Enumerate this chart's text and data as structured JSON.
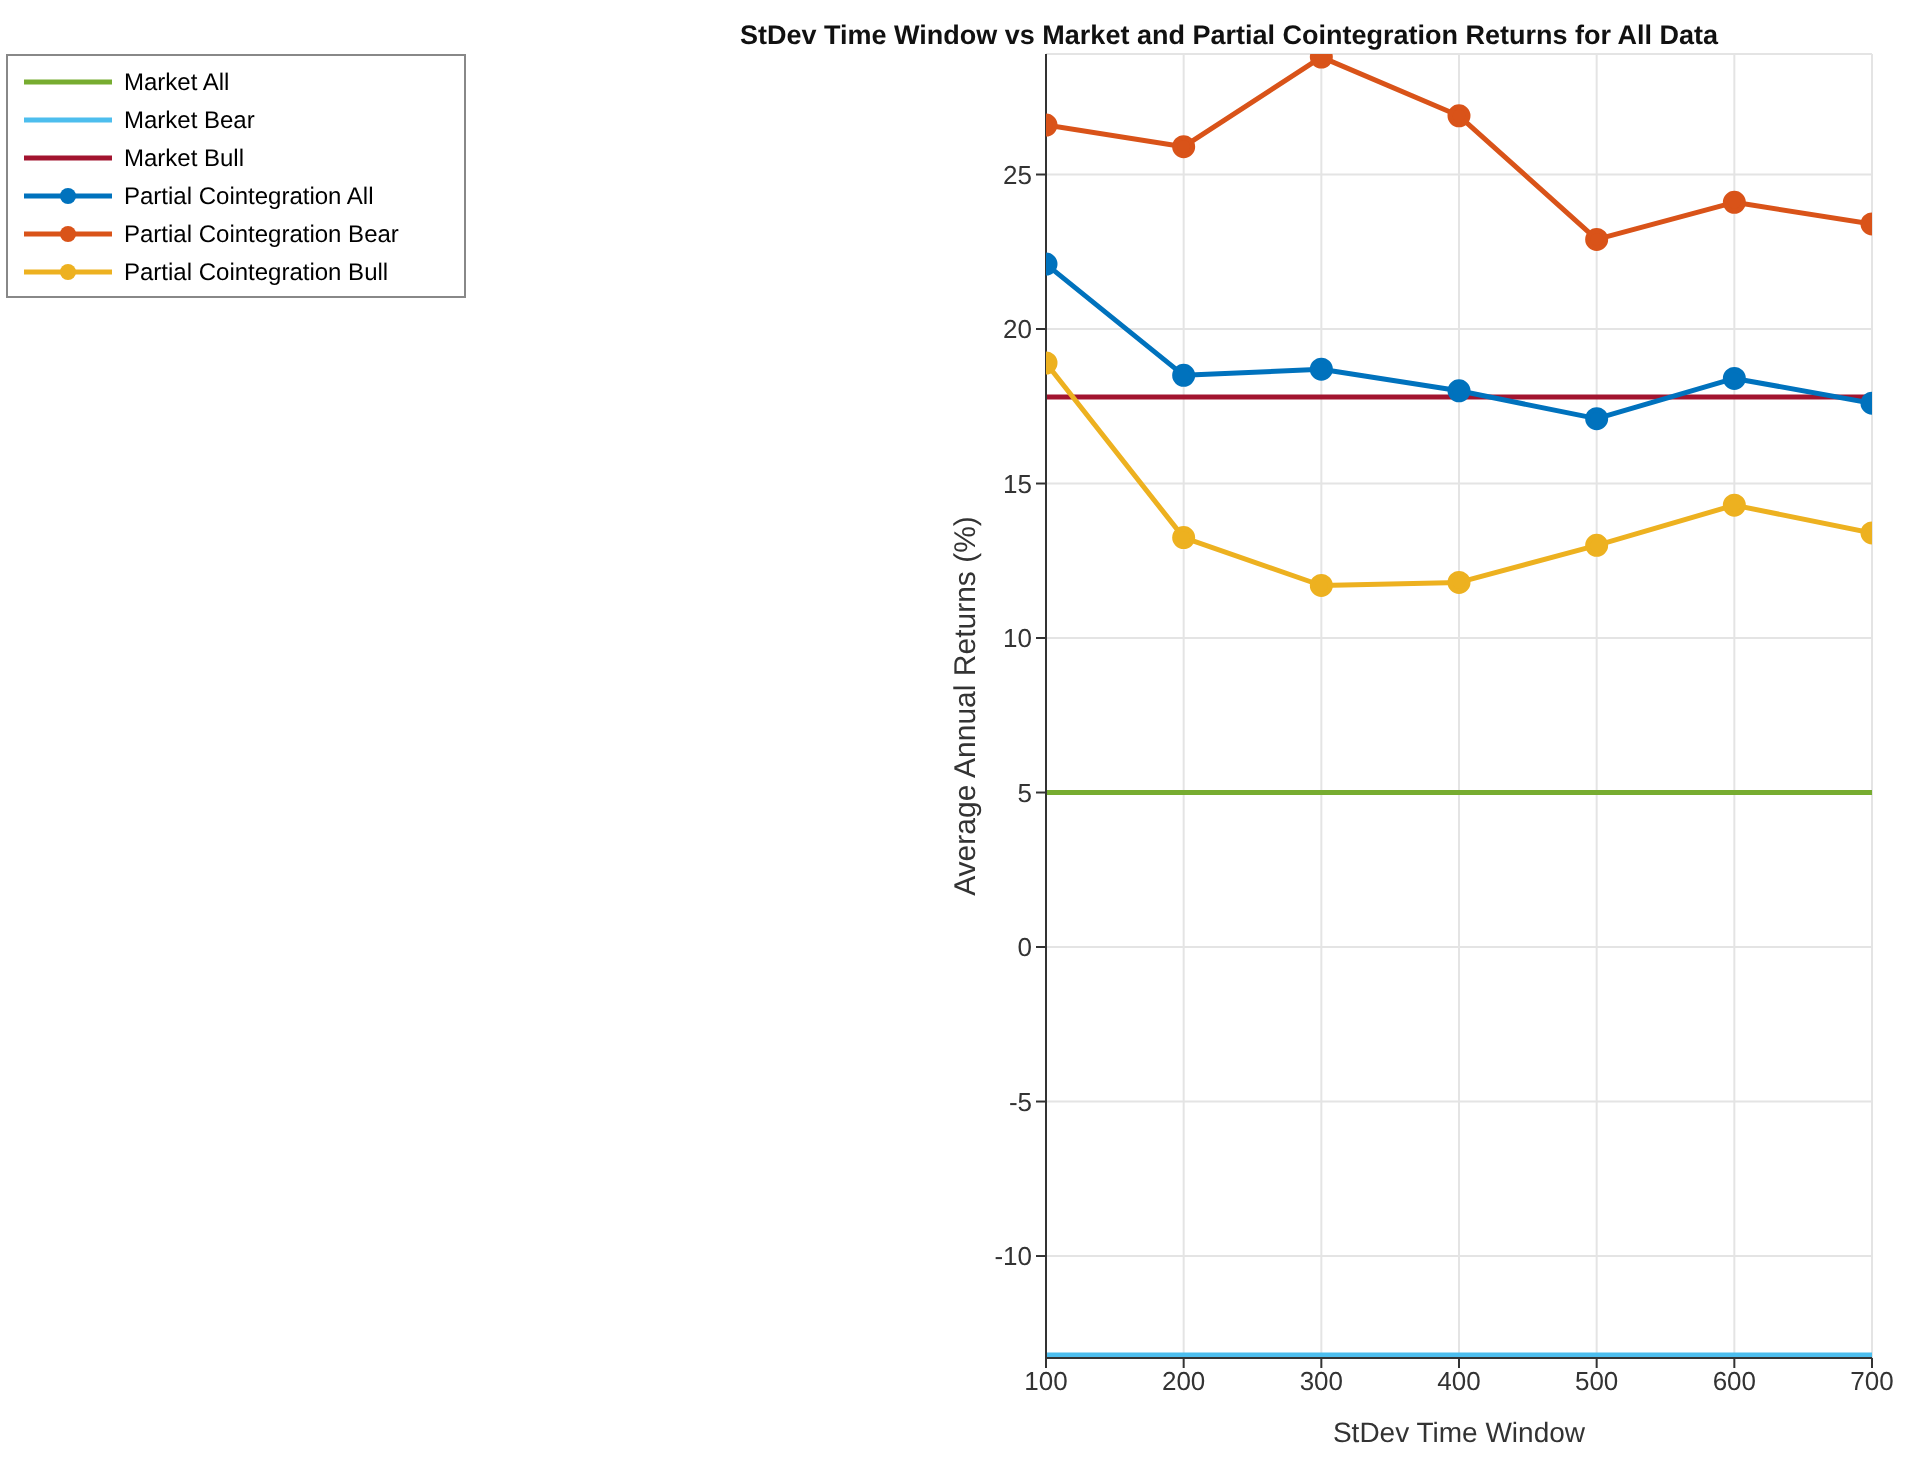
{
  "chart_data": {
    "type": "line",
    "title": "StDev Time Window vs Market and Partial Cointegration Returns for All Data",
    "xlabel": "StDev Time Window",
    "ylabel": "Average Annual Returns (%)",
    "x": [
      100,
      200,
      300,
      400,
      500,
      600,
      700
    ],
    "series": [
      {
        "name": "Market All",
        "color": "#77ac30",
        "marker": "none",
        "values": [
          5,
          5,
          5,
          5,
          5,
          5,
          5
        ]
      },
      {
        "name": "Market Bear",
        "color": "#4dbeee",
        "marker": "none",
        "values": [
          -13.2,
          -13.2,
          -13.2,
          -13.2,
          -13.2,
          -13.2,
          -13.2
        ]
      },
      {
        "name": "Market Bull",
        "color": "#a2142f",
        "marker": "none",
        "values": [
          17.8,
          17.8,
          17.8,
          17.8,
          17.8,
          17.8,
          17.8
        ]
      },
      {
        "name": "Partial Cointegration All",
        "color": "#0072bd",
        "marker": "circle",
        "values": [
          22.1,
          18.5,
          18.7,
          18.0,
          17.1,
          18.4,
          17.6
        ]
      },
      {
        "name": "Partial Cointegration Bear",
        "color": "#d95319",
        "marker": "circle",
        "values": [
          26.6,
          25.9,
          28.8,
          26.9,
          22.9,
          24.1,
          23.4
        ]
      },
      {
        "name": "Partial Cointegration Bull",
        "color": "#edb120",
        "marker": "circle",
        "values": [
          18.9,
          13.25,
          11.7,
          11.8,
          13.0,
          14.3,
          13.4
        ]
      }
    ],
    "xlim": [
      100,
      700
    ],
    "xticks": [
      100,
      200,
      300,
      400,
      500,
      600,
      700
    ],
    "ylim": [
      -13.3,
      28.9
    ],
    "yticks": [
      -10,
      -5,
      0,
      5,
      10,
      15,
      20,
      25
    ],
    "grid": true,
    "legend": "left"
  }
}
